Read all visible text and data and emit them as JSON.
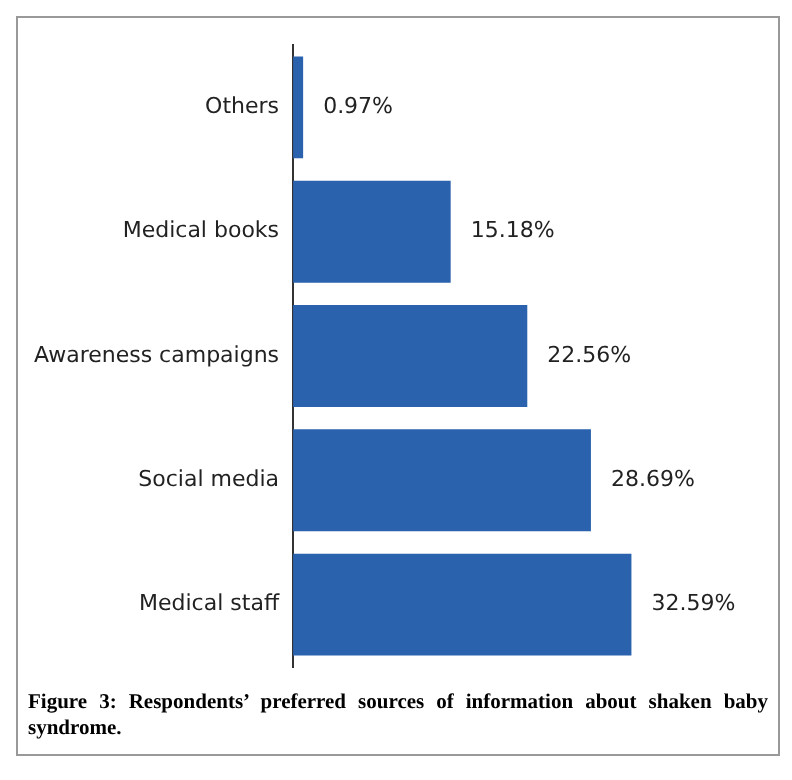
{
  "chart_data": {
    "type": "bar",
    "orientation": "horizontal",
    "categories": [
      "Others",
      "Medical books",
      "Awareness campaigns",
      "Social media",
      "Medical staff"
    ],
    "values": [
      0.97,
      15.18,
      22.56,
      28.69,
      32.59
    ],
    "value_labels": [
      "0.97%",
      "15.18%",
      "22.56%",
      "28.69%",
      "32.59%"
    ],
    "color": "#2a62ad",
    "tick_labels": "y",
    "legend": false,
    "annotations": [
      "Figure 3: Respondents’ preferred sources of information about shaken baby syndrome."
    ]
  }
}
